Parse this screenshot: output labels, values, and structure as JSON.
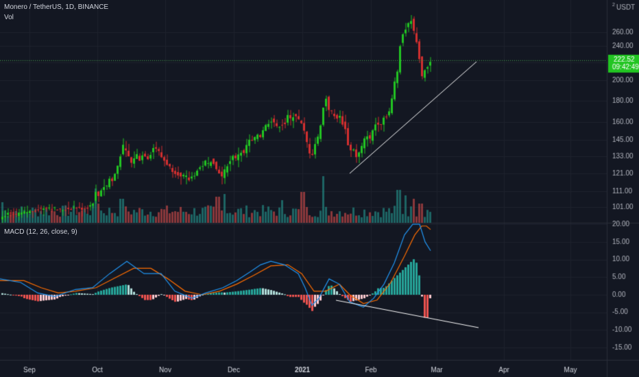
{
  "header": {
    "symbol_line": "Monero / TetherUS, 1D, BINANCE",
    "volume_label": "Vol",
    "macd_label": "MACD (12, 26, close, 9)"
  },
  "price_axis": {
    "currency": "USDT",
    "currency_marker": "2",
    "ticks": [
      "260.00",
      "240.00",
      "220.00",
      "200.00",
      "180.00",
      "160.00",
      "145.00",
      "133.00",
      "121.00",
      "111.00",
      "101.00"
    ],
    "last_price": "222.52",
    "countdown": "09:42:49"
  },
  "macd_axis": {
    "ticks": [
      "20.00",
      "15.00",
      "10.00",
      "5.00",
      "0.00",
      "-5.00",
      "-10.00",
      "-15.00"
    ]
  },
  "time_axis": {
    "labels": [
      "Sep",
      "Oct",
      "Nov",
      "Dec",
      "2021",
      "Feb",
      "Mar",
      "Apr",
      "May"
    ]
  },
  "colors": {
    "background": "#131722",
    "grid": "#1e222d",
    "up": "#26a69a",
    "up_candle": "#22c522",
    "down": "#ef5350",
    "down_candle": "#d32f2f",
    "macd_line": "#2196f3",
    "signal_line": "#ff6d00",
    "trendline": "#ffffff",
    "price_line": "#4caf50"
  },
  "chart_data": [
    {
      "type": "candlestick",
      "title": "Monero / TetherUS, 1D, BINANCE",
      "x": [
        "Sep",
        "Oct",
        "Nov",
        "Dec",
        "2021",
        "Feb",
        "Mar",
        "Apr",
        "May"
      ],
      "y_axis_scale": "log",
      "ylim": [
        95,
        290
      ],
      "yticks": [
        101,
        111,
        121,
        133,
        145,
        160,
        180,
        200,
        220,
        240,
        260
      ],
      "last_price": 222.52,
      "price_path": [
        [
          0,
          94
        ],
        [
          10,
          97
        ],
        [
          20,
          96
        ],
        [
          30,
          97
        ],
        [
          40,
          98
        ],
        [
          50,
          99
        ],
        [
          60,
          100
        ],
        [
          70,
          101
        ],
        [
          80,
          100
        ],
        [
          90,
          99
        ],
        [
          100,
          100
        ],
        [
          110,
          101
        ],
        [
          120,
          100
        ],
        [
          130,
          101
        ],
        [
          136,
          104
        ],
        [
          140,
          110
        ],
        [
          144,
          108
        ],
        [
          150,
          114
        ],
        [
          155,
          113
        ],
        [
          160,
          118
        ],
        [
          165,
          116
        ],
        [
          170,
          124
        ],
        [
          175,
          130
        ],
        [
          178,
          142
        ],
        [
          183,
          137
        ],
        [
          187,
          134
        ],
        [
          192,
          128
        ],
        [
          196,
          132
        ],
        [
          200,
          134
        ],
        [
          205,
          130
        ],
        [
          210,
          136
        ],
        [
          215,
          131
        ],
        [
          220,
          135
        ],
        [
          225,
          140
        ],
        [
          230,
          138
        ],
        [
          235,
          133
        ],
        [
          240,
          130
        ],
        [
          245,
          127
        ],
        [
          250,
          124
        ],
        [
          255,
          122
        ],
        [
          260,
          121
        ],
        [
          265,
          118
        ],
        [
          270,
          120
        ],
        [
          275,
          117
        ],
        [
          280,
          119
        ],
        [
          285,
          121
        ],
        [
          290,
          124
        ],
        [
          295,
          126
        ],
        [
          300,
          129
        ],
        [
          305,
          127
        ],
        [
          310,
          132
        ],
        [
          315,
          124
        ],
        [
          320,
          122
        ],
        [
          325,
          118
        ],
        [
          330,
          126
        ],
        [
          335,
          128
        ],
        [
          340,
          134
        ],
        [
          345,
          130
        ],
        [
          350,
          138
        ],
        [
          355,
          133
        ],
        [
          360,
          141
        ],
        [
          365,
          145
        ],
        [
          370,
          143
        ],
        [
          375,
          150
        ],
        [
          380,
          148
        ],
        [
          385,
          155
        ],
        [
          390,
          158
        ],
        [
          395,
          162
        ],
        [
          400,
          160
        ],
        [
          405,
          154
        ],
        [
          410,
          159
        ],
        [
          415,
          157
        ],
        [
          420,
          165
        ],
        [
          425,
          162
        ],
        [
          430,
          168
        ],
        [
          435,
          163
        ],
        [
          440,
          158
        ],
        [
          445,
          150
        ],
        [
          450,
          138
        ],
        [
          455,
          133
        ],
        [
          460,
          142
        ],
        [
          465,
          148
        ],
        [
          470,
          165
        ],
        [
          475,
          185
        ],
        [
          480,
          172
        ],
        [
          485,
          168
        ],
        [
          490,
          163
        ],
        [
          495,
          166
        ],
        [
          500,
          159
        ],
        [
          505,
          152
        ],
        [
          510,
          135
        ],
        [
          515,
          140
        ],
        [
          520,
          132
        ],
        [
          525,
          136
        ],
        [
          530,
          142
        ],
        [
          535,
          150
        ],
        [
          540,
          145
        ],
        [
          545,
          155
        ],
        [
          550,
          160
        ],
        [
          555,
          158
        ],
        [
          560,
          164
        ],
        [
          565,
          166
        ],
        [
          570,
          172
        ],
        [
          575,
          195
        ],
        [
          580,
          210
        ],
        [
          585,
          250
        ],
        [
          590,
          262
        ],
        [
          595,
          270
        ],
        [
          600,
          280
        ],
        [
          605,
          255
        ],
        [
          610,
          242
        ],
        [
          615,
          200
        ],
        [
          620,
          212
        ],
        [
          625,
          215
        ],
        [
          628,
          222.5
        ]
      ]
    },
    {
      "type": "bar",
      "title": "Vol",
      "x": [
        "Sep",
        "Oct",
        "Nov",
        "Dec",
        "2021",
        "Feb",
        "Mar",
        "Apr",
        "May"
      ],
      "values": "relative daily volume, peaks near Oct start, early Jan and mid Feb"
    },
    {
      "type": "line",
      "title": "MACD (12, 26, close, 9)",
      "x": [
        "Sep",
        "Oct",
        "Nov",
        "Dec",
        "2021",
        "Feb",
        "Mar",
        "Apr",
        "May"
      ],
      "ylim": [
        -17,
        20
      ],
      "yticks": [
        -15,
        -10,
        -5,
        0,
        5,
        10,
        15,
        20
      ],
      "series": [
        {
          "name": "MACD",
          "points": [
            [
              0,
              4.5
            ],
            [
              30,
              3.5
            ],
            [
              55,
              0.5
            ],
            [
              80,
              -0.5
            ],
            [
              110,
              1.5
            ],
            [
              135,
              2
            ],
            [
              160,
              6
            ],
            [
              185,
              9.5
            ],
            [
              210,
              6
            ],
            [
              235,
              6
            ],
            [
              255,
              1
            ],
            [
              280,
              -1
            ],
            [
              300,
              0.5
            ],
            [
              325,
              2
            ],
            [
              345,
              4
            ],
            [
              365,
              6.5
            ],
            [
              380,
              8.5
            ],
            [
              395,
              9.5
            ],
            [
              415,
              8.5
            ],
            [
              435,
              6
            ],
            [
              445,
              2
            ],
            [
              455,
              -3
            ],
            [
              465,
              -1
            ],
            [
              480,
              4.5
            ],
            [
              495,
              3
            ],
            [
              510,
              -2
            ],
            [
              530,
              -3.5
            ],
            [
              545,
              -1
            ],
            [
              560,
              3
            ],
            [
              575,
              9
            ],
            [
              590,
              17
            ],
            [
              602,
              20
            ],
            [
              612,
              20
            ],
            [
              620,
              15
            ],
            [
              628,
              12.5
            ]
          ]
        },
        {
          "name": "Signal",
          "points": [
            [
              0,
              4
            ],
            [
              35,
              4
            ],
            [
              60,
              2
            ],
            [
              85,
              0.5
            ],
            [
              110,
              1
            ],
            [
              140,
              2
            ],
            [
              170,
              5
            ],
            [
              195,
              7.5
            ],
            [
              220,
              7.5
            ],
            [
              245,
              4.5
            ],
            [
              270,
              1
            ],
            [
              295,
              0
            ],
            [
              320,
              1
            ],
            [
              345,
              3
            ],
            [
              370,
              5.5
            ],
            [
              395,
              8.2
            ],
            [
              420,
              8.5
            ],
            [
              440,
              6
            ],
            [
              458,
              1
            ],
            [
              475,
              1
            ],
            [
              495,
              3
            ],
            [
              510,
              0
            ],
            [
              530,
              -2.5
            ],
            [
              550,
              -1.5
            ],
            [
              570,
              3.5
            ],
            [
              590,
              11
            ],
            [
              605,
              17
            ],
            [
              615,
              19.5
            ],
            [
              622,
              19.5
            ],
            [
              628,
              18.5
            ]
          ]
        }
      ],
      "histogram": "MACD minus Signal, positive bars teal, negative bars red",
      "annotations": [
        "price support trendline",
        "MACD divergence trendline"
      ]
    }
  ]
}
